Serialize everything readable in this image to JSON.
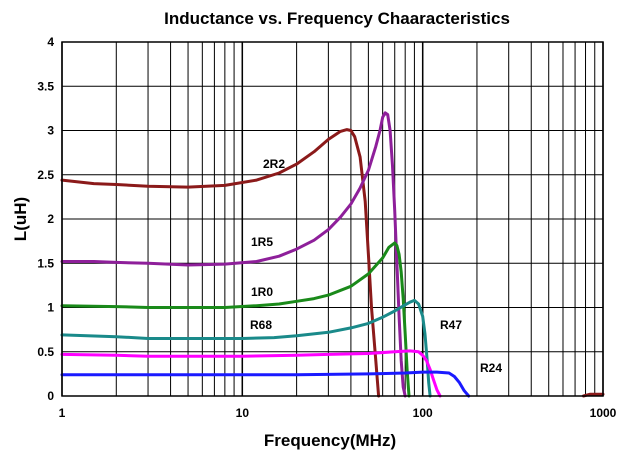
{
  "chart_data": {
    "type": "line",
    "title": "Inductance vs. Frequency Chaaracteristics",
    "xlabel": "Frequency(MHz)",
    "ylabel": "L(uH)",
    "xscale": "log",
    "xlim": [
      1,
      1000
    ],
    "ylim": [
      0,
      4
    ],
    "x_ticks": [
      "1",
      "10",
      "100",
      "1000"
    ],
    "y_ticks": [
      "0",
      "0.5",
      "1",
      "1.5",
      "2",
      "2.5",
      "3",
      "3.5",
      "4"
    ],
    "grid": true,
    "legend": "inline labels",
    "series": [
      {
        "name": "2R2",
        "color": "#8b1a1a",
        "x": [
          1,
          1.5,
          2,
          3,
          5,
          8,
          12,
          16,
          20,
          25,
          30,
          35,
          38,
          40,
          42,
          45,
          48,
          50,
          52,
          55,
          57
        ],
        "y": [
          2.44,
          2.4,
          2.39,
          2.37,
          2.36,
          2.38,
          2.44,
          2.52,
          2.62,
          2.76,
          2.9,
          2.99,
          3.01,
          3.0,
          2.93,
          2.7,
          2.2,
          1.6,
          1.0,
          0.4,
          0.0
        ]
      },
      {
        "name": "1R5",
        "color": "#8e1f9a",
        "x": [
          1,
          1.5,
          2,
          3,
          5,
          8,
          12,
          16,
          20,
          25,
          30,
          35,
          40,
          45,
          50,
          55,
          58,
          60,
          62,
          64,
          66,
          68,
          70,
          72,
          74,
          76,
          78,
          80
        ],
        "y": [
          1.52,
          1.52,
          1.51,
          1.5,
          1.48,
          1.49,
          1.52,
          1.58,
          1.66,
          1.76,
          1.88,
          2.02,
          2.17,
          2.35,
          2.55,
          2.82,
          3.0,
          3.15,
          3.2,
          3.18,
          3.0,
          2.6,
          2.1,
          1.5,
          0.9,
          0.4,
          0.1,
          0.0
        ]
      },
      {
        "name": "1R0",
        "color": "#1a8a1a",
        "x": [
          1,
          2,
          3,
          5,
          8,
          12,
          16,
          20,
          25,
          30,
          40,
          50,
          60,
          65,
          70,
          72,
          74,
          76,
          78,
          80,
          82,
          84
        ],
        "y": [
          1.02,
          1.01,
          1.0,
          1.0,
          1.0,
          1.02,
          1.04,
          1.07,
          1.1,
          1.14,
          1.24,
          1.38,
          1.56,
          1.68,
          1.73,
          1.7,
          1.6,
          1.4,
          1.1,
          0.7,
          0.3,
          0.0
        ]
      },
      {
        "name": "R68",
        "color": "#1a8a8a",
        "x": [
          1,
          2,
          3,
          5,
          10,
          15,
          20,
          30,
          40,
          50,
          60,
          70,
          80,
          85,
          90,
          95,
          100,
          103,
          106,
          108,
          110
        ],
        "y": [
          0.69,
          0.67,
          0.65,
          0.65,
          0.65,
          0.66,
          0.68,
          0.72,
          0.77,
          0.82,
          0.89,
          0.96,
          1.03,
          1.06,
          1.08,
          1.04,
          0.9,
          0.7,
          0.4,
          0.15,
          0.0
        ]
      },
      {
        "name": "R47",
        "color": "#ff00ff",
        "x": [
          1,
          2,
          3,
          5,
          10,
          20,
          30,
          50,
          70,
          85,
          95,
          100,
          105,
          110,
          115,
          120,
          125
        ],
        "y": [
          0.47,
          0.46,
          0.45,
          0.45,
          0.45,
          0.46,
          0.47,
          0.48,
          0.5,
          0.51,
          0.5,
          0.46,
          0.4,
          0.3,
          0.18,
          0.07,
          0.0
        ]
      },
      {
        "name": "R24",
        "color": "#1a1aff",
        "x": [
          1,
          2,
          5,
          10,
          20,
          50,
          80,
          100,
          120,
          140,
          150,
          160,
          170,
          180
        ],
        "y": [
          0.24,
          0.24,
          0.24,
          0.24,
          0.24,
          0.25,
          0.26,
          0.27,
          0.27,
          0.26,
          0.22,
          0.15,
          0.06,
          0.0
        ]
      },
      {
        "name": "",
        "color": "#8b1a1a",
        "x": [
          780,
          850,
          900,
          1000
        ],
        "y": [
          0.0,
          0.02,
          0.02,
          0.02
        ]
      }
    ],
    "annotations": [
      "2R2",
      "1R5",
      "1R0",
      "R68",
      "R47",
      "R24"
    ]
  }
}
